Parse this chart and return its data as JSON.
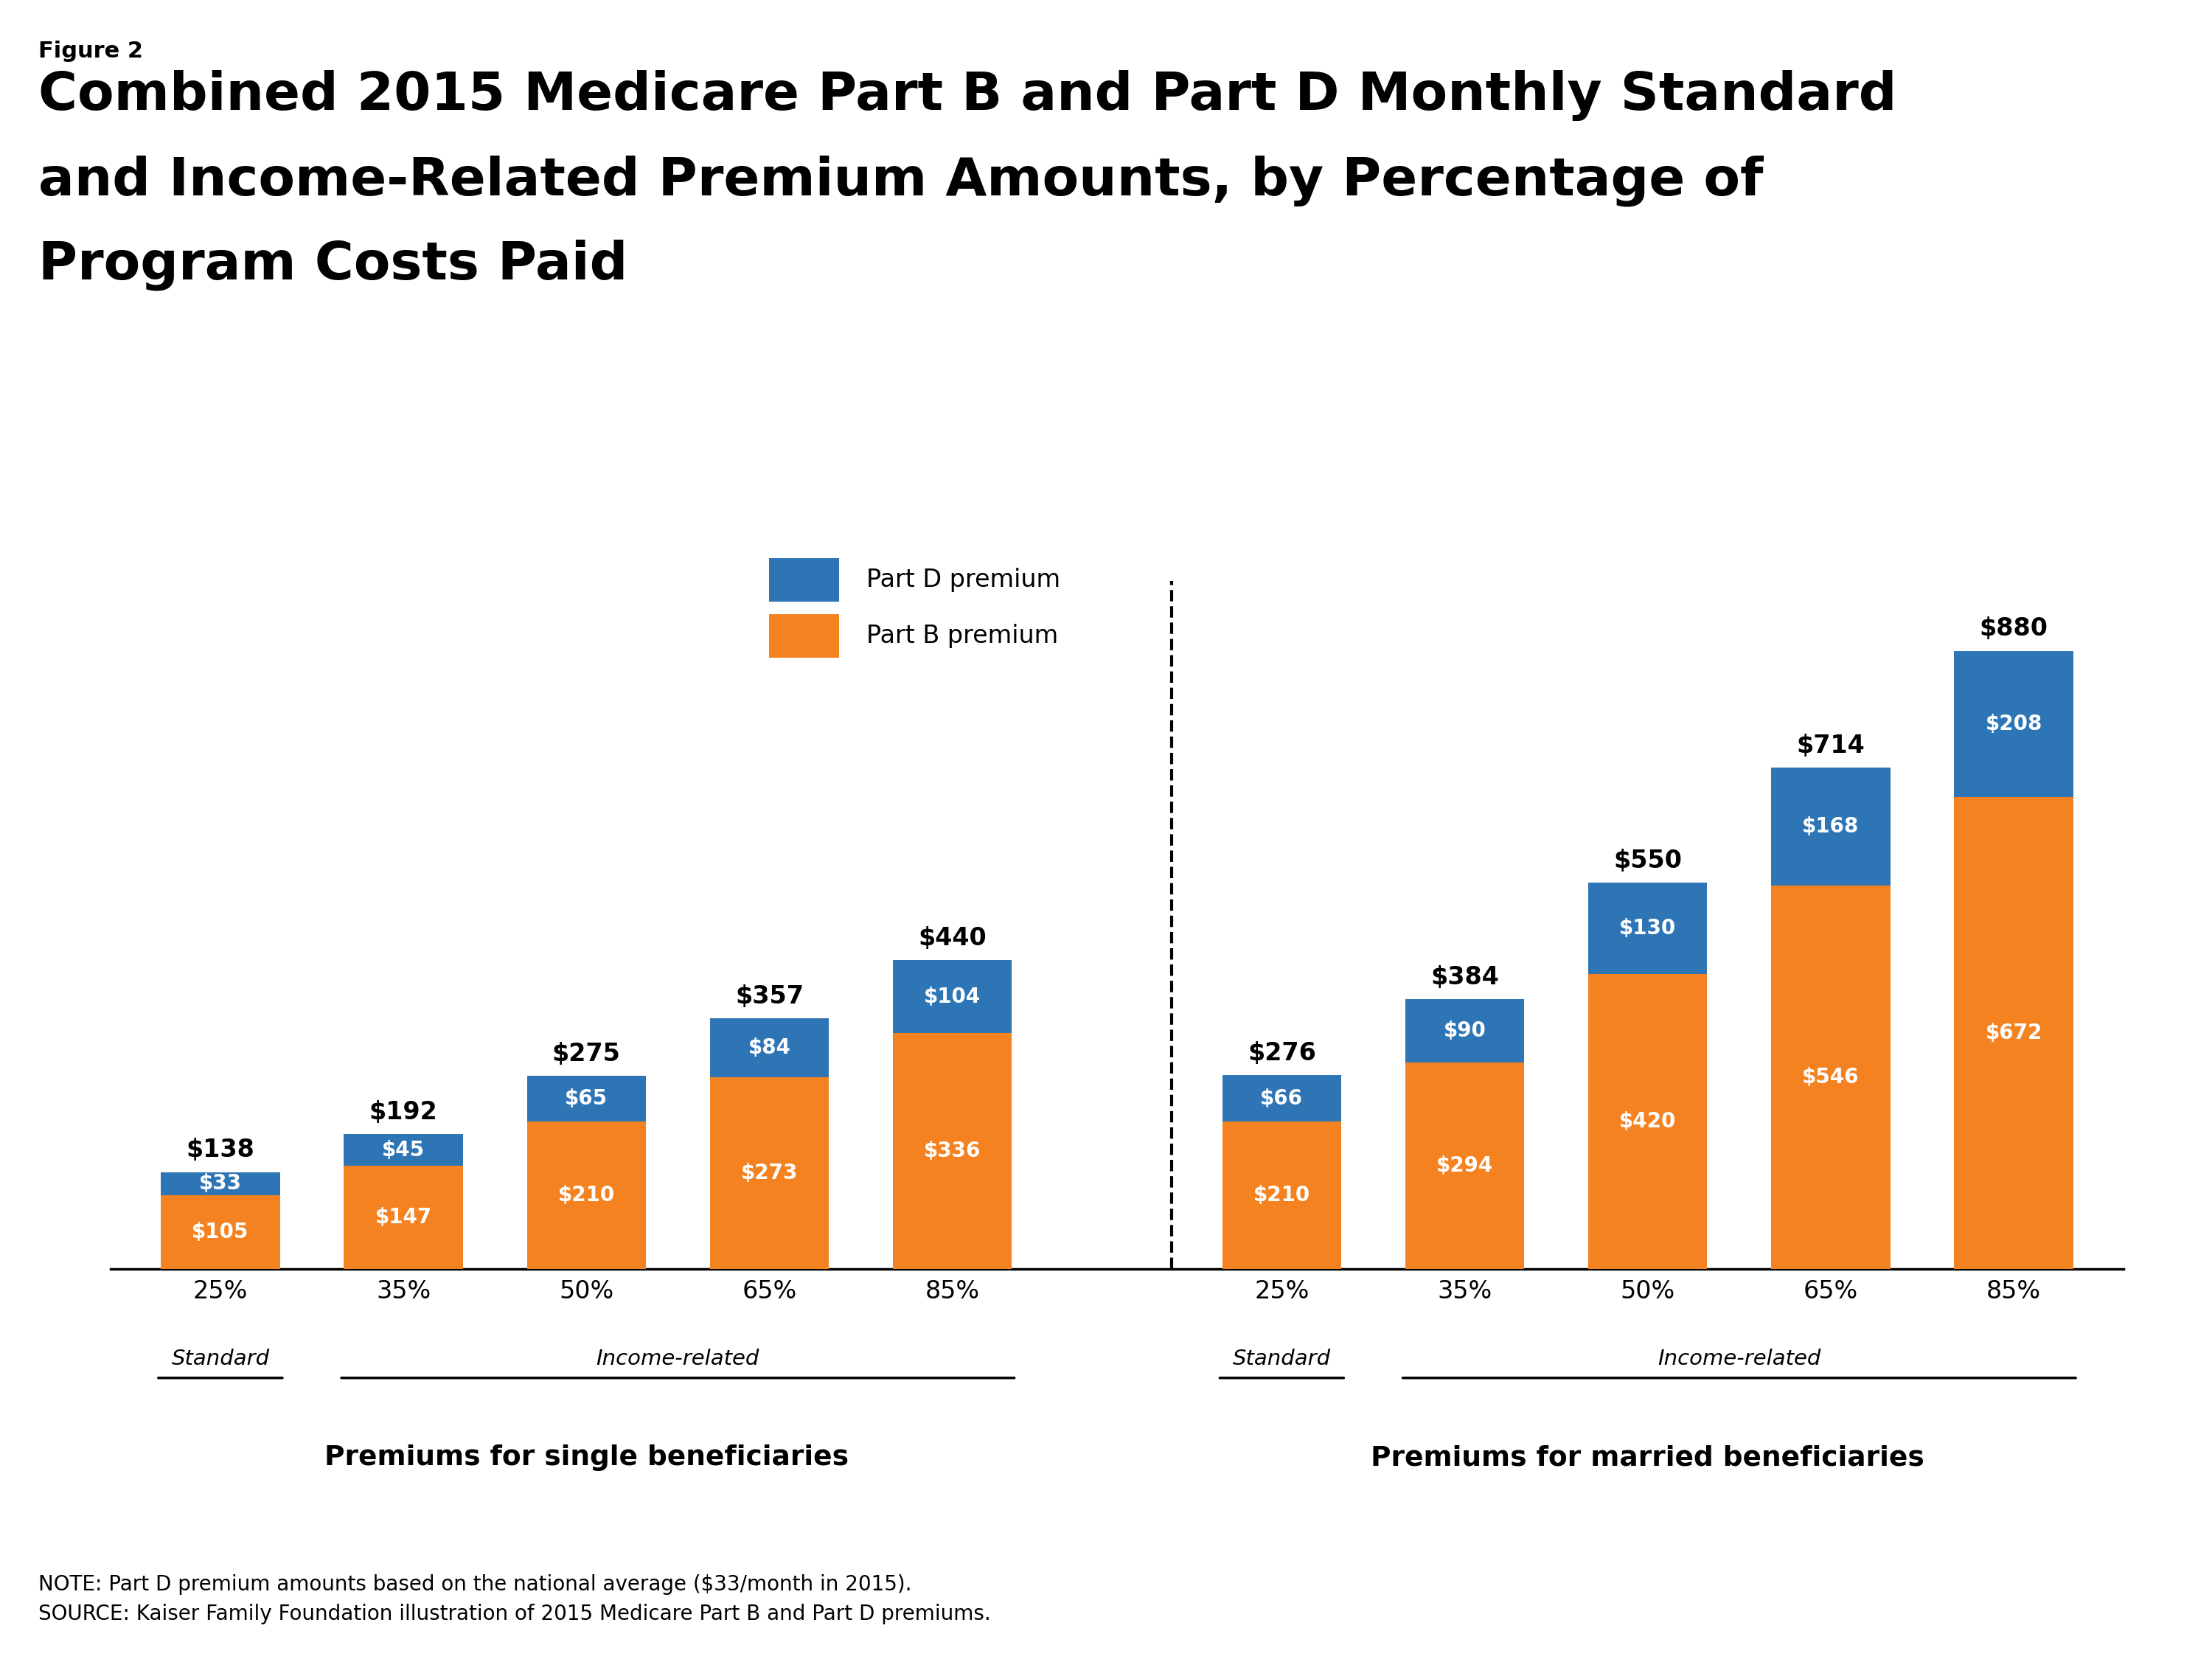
{
  "figure_label": "Figure 2",
  "title_line1": "Combined 2015 Medicare Part B and Part D Monthly Standard",
  "title_line2": "and Income-Related Premium Amounts, by Percentage of",
  "title_line3": "Program Costs Paid",
  "single_labels": [
    "25%",
    "35%",
    "50%",
    "65%",
    "85%"
  ],
  "married_labels": [
    "25%",
    "35%",
    "50%",
    "65%",
    "85%"
  ],
  "single_partB": [
    105,
    147,
    210,
    273,
    336
  ],
  "single_partD": [
    33,
    45,
    65,
    84,
    104
  ],
  "married_partB": [
    210,
    294,
    420,
    546,
    672
  ],
  "married_partD": [
    66,
    90,
    130,
    168,
    208
  ],
  "single_totals": [
    138,
    192,
    275,
    357,
    440
  ],
  "married_totals": [
    276,
    384,
    550,
    714,
    880
  ],
  "color_partB": "#F58220",
  "color_partD": "#2E75B6",
  "bar_width": 0.65,
  "single_group_label": "Premiums for single beneficiaries",
  "married_group_label": "Premiums for married beneficiaries",
  "single_standard_label": "Standard",
  "single_income_label": "Income-related",
  "married_standard_label": "Standard",
  "married_income_label": "Income-related",
  "legend_partD": "Part D premium",
  "legend_partB": "Part B premium",
  "note_line1": "NOTE: Part D premium amounts based on the national average ($33/month in 2015).",
  "note_line2": "SOURCE: Kaiser Family Foundation illustration of 2015 Medicare Part B and Part D premiums.",
  "background_color": "#FFFFFF",
  "text_color": "#000000",
  "white_text": "#FFFFFF"
}
